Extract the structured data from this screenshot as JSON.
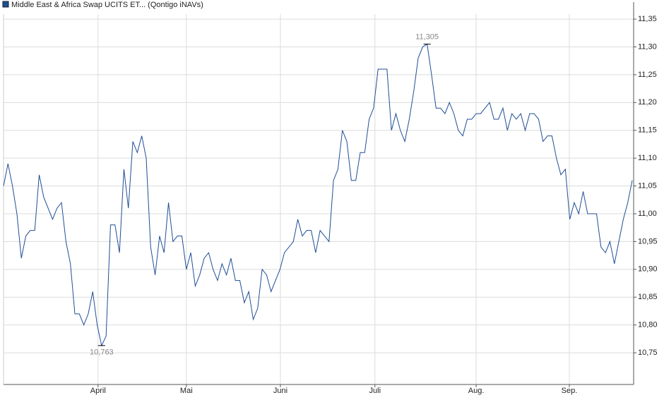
{
  "chart_data": {
    "type": "line",
    "series": [
      {
        "name": "Middle East & Africa Swap UCITS ET... (Qontigo iNAVs)",
        "color": "#1f4e96",
        "values": [
          11.05,
          11.09,
          11.05,
          11.0,
          10.92,
          10.96,
          10.97,
          10.97,
          11.07,
          11.03,
          11.01,
          10.99,
          11.01,
          11.02,
          10.95,
          10.91,
          10.82,
          10.82,
          10.8,
          10.82,
          10.86,
          10.8,
          10.763,
          10.78,
          10.98,
          10.98,
          10.93,
          11.08,
          11.01,
          11.13,
          11.11,
          11.14,
          11.1,
          10.94,
          10.89,
          10.96,
          10.93,
          11.02,
          10.95,
          10.96,
          10.96,
          10.9,
          10.93,
          10.87,
          10.89,
          10.92,
          10.93,
          10.9,
          10.88,
          10.91,
          10.89,
          10.92,
          10.88,
          10.88,
          10.84,
          10.86,
          10.81,
          10.83,
          10.9,
          10.89,
          10.86,
          10.88,
          10.9,
          10.93,
          10.94,
          10.95,
          10.99,
          10.96,
          10.97,
          10.97,
          10.93,
          10.97,
          10.96,
          10.95,
          11.06,
          11.08,
          11.15,
          11.13,
          11.06,
          11.06,
          11.11,
          11.11,
          11.17,
          11.19,
          11.26,
          11.26,
          11.26,
          11.15,
          11.18,
          11.15,
          11.13,
          11.17,
          11.22,
          11.28,
          11.3,
          11.305,
          11.25,
          11.19,
          11.19,
          11.18,
          11.2,
          11.18,
          11.15,
          11.14,
          11.17,
          11.17,
          11.18,
          11.18,
          11.19,
          11.2,
          11.17,
          11.17,
          11.19,
          11.15,
          11.18,
          11.17,
          11.18,
          11.15,
          11.18,
          11.18,
          11.17,
          11.13,
          11.14,
          11.14,
          11.1,
          11.07,
          11.08,
          10.99,
          11.02,
          11.0,
          11.04,
          11.0,
          11.0,
          11.0,
          10.94,
          10.93,
          10.95,
          10.91,
          10.95,
          10.99,
          11.02,
          11.06
        ]
      }
    ],
    "xlim": [
      0,
      141
    ],
    "xticks": [
      {
        "value": 21.2,
        "label": "April"
      },
      {
        "value": 41,
        "label": "Mai"
      },
      {
        "value": 62.1,
        "label": "Juni"
      },
      {
        "value": 83.3,
        "label": "Juli"
      },
      {
        "value": 106,
        "label": "Aug."
      },
      {
        "value": 126.9,
        "label": "Sep."
      }
    ],
    "ylim": [
      10.693,
      11.359
    ],
    "yticks": [
      {
        "value": 10.75,
        "label": "10,75"
      },
      {
        "value": 10.8,
        "label": "10,80"
      },
      {
        "value": 10.85,
        "label": "10,85"
      },
      {
        "value": 10.9,
        "label": "10,90"
      },
      {
        "value": 10.95,
        "label": "10,95"
      },
      {
        "value": 11,
        "label": "11,00"
      },
      {
        "value": 11.05,
        "label": "11,05"
      },
      {
        "value": 11.1,
        "label": "11,10"
      },
      {
        "value": 11.15,
        "label": "11,15"
      },
      {
        "value": 11.2,
        "label": "11,20"
      },
      {
        "value": 11.25,
        "label": "11,25"
      },
      {
        "value": 11.3,
        "label": "11,30"
      },
      {
        "value": 11.35,
        "label": "11,35"
      }
    ],
    "annotations": [
      {
        "label": "11,305",
        "x": 95,
        "value": 11.305,
        "position": "above"
      },
      {
        "label": "10,763",
        "x": 22,
        "value": 10.763,
        "position": "below"
      }
    ],
    "grid": true
  }
}
